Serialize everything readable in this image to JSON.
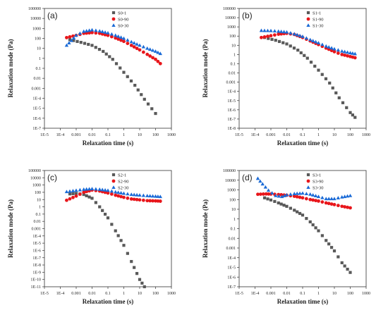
{
  "chart_data": [
    {
      "panel_label": "(a)",
      "type": "scatter",
      "xscale": "log",
      "yscale": "log",
      "xlabel": "Relaxation time (s)",
      "ylabel": "Relaxation mode (Pa)",
      "xlim": [
        1e-05,
        1000
      ],
      "ylim": [
        1e-07,
        100000
      ],
      "xtick_labels": [
        "1E-5",
        "1E-4",
        "0.001",
        "0.01",
        "0.1",
        "1",
        "10",
        "100",
        "1000"
      ],
      "ytick_labels": [
        "1E-7",
        "1E-6",
        "1E-5",
        "1E-4",
        "0.001",
        "0.01",
        "0.1",
        "1",
        "10",
        "100",
        "1000",
        "10000",
        "100000"
      ],
      "legend_position": "top-center",
      "series": [
        {
          "name": "S0-1",
          "marker": "square",
          "color": "#595959",
          "x": [
            0.0004,
            0.002,
            0.01,
            0.05,
            0.2,
            1,
            5,
            20,
            100
          ],
          "y": [
            75,
            40,
            20,
            5,
            0.8,
            0.04,
            0.002,
            8e-05,
            3e-06
          ]
        },
        {
          "name": "S0-90",
          "marker": "circle",
          "color": "#e8161b",
          "x": [
            0.00025,
            0.001,
            0.003,
            0.01,
            0.03,
            0.1,
            0.3,
            1,
            3,
            10,
            30,
            100,
            200
          ],
          "y": [
            120,
            200,
            320,
            380,
            320,
            200,
            110,
            50,
            20,
            7,
            2.5,
            0.8,
            0.3
          ]
        },
        {
          "name": "S0-30",
          "marker": "triangle",
          "color": "#1a6ad6",
          "x": [
            0.00025,
            0.0005,
            0.001,
            0.003,
            0.01,
            0.03,
            0.1,
            0.3,
            1,
            3,
            10,
            30,
            100,
            200
          ],
          "y": [
            20,
            60,
            200,
            500,
            700,
            550,
            350,
            200,
            100,
            45,
            20,
            10,
            5,
            3
          ]
        }
      ]
    },
    {
      "panel_label": "(b)",
      "type": "scatter",
      "xscale": "log",
      "yscale": "log",
      "xlabel": "Relaxation time (s)",
      "ylabel": "Relaxation mode (Pa)",
      "xlim": [
        1e-05,
        1000
      ],
      "ylim": [
        1e-08,
        100000
      ],
      "xtick_labels": [
        "1E-5",
        "1E-4",
        "0.001",
        "0.01",
        "0.1",
        "1",
        "10",
        "100",
        "1000"
      ],
      "ytick_labels": [
        "1E-8",
        "1E-7",
        "1E-6",
        "1E-5",
        "1E-4",
        "0.001",
        "0.01",
        "0.1",
        "1",
        "10",
        "100",
        "1000",
        "10000",
        "100000"
      ],
      "legend_position": "top-center",
      "series": [
        {
          "name": "S1-1",
          "marker": "square",
          "color": "#595959",
          "x": [
            0.0004,
            0.002,
            0.01,
            0.05,
            0.2,
            1,
            5,
            20,
            100,
            200
          ],
          "y": [
            70,
            35,
            14,
            3,
            0.4,
            0.02,
            0.0008,
            2e-05,
            5e-07,
            1.5e-07
          ]
        },
        {
          "name": "S1-90",
          "marker": "circle",
          "color": "#e8161b",
          "x": [
            0.00025,
            0.001,
            0.003,
            0.01,
            0.03,
            0.1,
            0.3,
            1,
            3,
            10,
            30,
            100,
            200
          ],
          "y": [
            70,
            110,
            160,
            200,
            150,
            70,
            30,
            12,
            5,
            2,
            1,
            0.6,
            0.45
          ]
        },
        {
          "name": "S1-30",
          "marker": "triangle",
          "color": "#1a6ad6",
          "x": [
            0.00025,
            0.001,
            0.003,
            0.01,
            0.03,
            0.1,
            0.3,
            1,
            3,
            10,
            30,
            100,
            200
          ],
          "y": [
            400,
            380,
            330,
            270,
            170,
            90,
            40,
            18,
            8,
            4,
            2.3,
            1.5,
            1.2
          ]
        }
      ]
    },
    {
      "panel_label": "(c)",
      "type": "scatter",
      "xscale": "log",
      "yscale": "log",
      "xlabel": "Relaxation time (s)",
      "ylabel": "Relaxation mode (Pa)",
      "xlim": [
        1e-05,
        1000
      ],
      "ylim": [
        1e-11,
        100000
      ],
      "xtick_labels": [
        "1E-5",
        "1E-4",
        "0.001",
        "0.01",
        "0.1",
        "1",
        "10",
        "100",
        "1000"
      ],
      "ytick_labels": [
        "1E-11",
        "1E-10",
        "1E-9",
        "1E-8",
        "1E-7",
        "1E-6",
        "1E-5",
        "1E-4",
        "0.001",
        "0.01",
        "0.1",
        "1",
        "10",
        "100",
        "1000",
        "10000",
        "100000"
      ],
      "legend_position": "top-center",
      "series": [
        {
          "name": "S2-1",
          "marker": "square",
          "color": "#595959",
          "x": [
            0.0004,
            0.001,
            0.003,
            0.01,
            0.03,
            0.1,
            0.3,
            1,
            3,
            10,
            20
          ],
          "y": [
            60,
            70,
            50,
            15,
            1,
            0.03,
            0.0005,
            5e-06,
            3e-08,
            1e-10,
            1e-11
          ]
        },
        {
          "name": "S2-90",
          "marker": "circle",
          "color": "#e8161b",
          "x": [
            0.00025,
            0.001,
            0.003,
            0.01,
            0.03,
            0.1,
            0.3,
            1,
            3,
            10,
            30,
            100,
            200
          ],
          "y": [
            8,
            30,
            100,
            200,
            150,
            80,
            40,
            20,
            12,
            9,
            7,
            6.5,
            6
          ]
        },
        {
          "name": "S2-30",
          "marker": "triangle",
          "color": "#1a6ad6",
          "x": [
            0.00025,
            0.001,
            0.003,
            0.01,
            0.03,
            0.1,
            0.3,
            1,
            3,
            10,
            30,
            100,
            200
          ],
          "y": [
            120,
            180,
            250,
            300,
            250,
            180,
            110,
            70,
            50,
            40,
            33,
            28,
            25
          ]
        }
      ]
    },
    {
      "panel_label": "(d)",
      "type": "scatter",
      "xscale": "log",
      "yscale": "log",
      "xlabel": "Relaxation time (s)",
      "ylabel": "Relaxation mode (Pa)",
      "xlim": [
        1e-05,
        1000
      ],
      "ylim": [
        1e-07,
        100000
      ],
      "xtick_labels": [
        "1E-5",
        "1E-4",
        "0.001",
        "0.01",
        "0.1",
        "1",
        "10",
        "100",
        "1000"
      ],
      "ytick_labels": [
        "1E-7",
        "1E-6",
        "1E-5",
        "1E-4",
        "0.001",
        "0.01",
        "0.1",
        "1",
        "10",
        "100",
        "1000",
        "10000",
        "100000"
      ],
      "legend_position": "top-center",
      "series": [
        {
          "name": "S3-1",
          "marker": "square",
          "color": "#595959",
          "x": [
            0.0004,
            0.001,
            0.003,
            0.01,
            0.03,
            0.1,
            0.3,
            1,
            3,
            10,
            30,
            100
          ],
          "y": [
            150,
            90,
            45,
            20,
            8,
            2.5,
            0.5,
            0.06,
            0.006,
            0.0005,
            3e-05,
            3e-06
          ]
        },
        {
          "name": "S3-90",
          "marker": "circle",
          "color": "#e8161b",
          "x": [
            0.00015,
            0.0005,
            0.001,
            0.003,
            0.01,
            0.03,
            0.1,
            0.3,
            1,
            3,
            10,
            30,
            100
          ],
          "y": [
            350,
            380,
            370,
            330,
            280,
            220,
            150,
            100,
            70,
            45,
            30,
            20,
            14
          ]
        },
        {
          "name": "S3-30",
          "marker": "triangle",
          "color": "#1a6ad6",
          "x": [
            0.00015,
            0.0003,
            0.0007,
            0.002,
            0.005,
            0.01,
            0.03,
            0.1,
            0.3,
            1,
            3,
            10,
            30,
            100
          ],
          "y": [
            15000,
            4000,
            900,
            250,
            200,
            300,
            400,
            450,
            350,
            200,
            120,
            120,
            180,
            250
          ]
        }
      ]
    }
  ]
}
